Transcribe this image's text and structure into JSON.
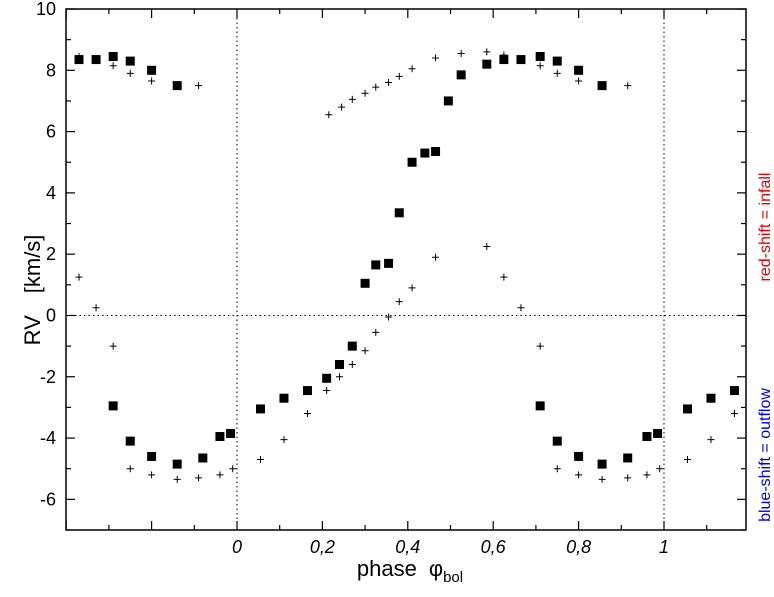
{
  "chart_data": {
    "type": "scatter",
    "xlabel": "phase",
    "xlabel_symbol": "φ",
    "xlabel_subscript": "bol",
    "ylabel": "RV",
    "ylabel_unit": "[km/s]",
    "xlim": [
      -0.4,
      1.18
    ],
    "ylim": [
      -7,
      10
    ],
    "x_ticks": [
      {
        "value": 0,
        "label": "0"
      },
      {
        "value": 0.2,
        "label": "0,2"
      },
      {
        "value": 0.4,
        "label": "0,4"
      },
      {
        "value": 0.6,
        "label": "0,6"
      },
      {
        "value": 0.8,
        "label": "0,8"
      },
      {
        "value": 1,
        "label": "1"
      }
    ],
    "y_ticks": [
      {
        "value": 10,
        "label": "10"
      },
      {
        "value": 8,
        "label": "8"
      },
      {
        "value": 6,
        "label": "6"
      },
      {
        "value": 4,
        "label": "4"
      },
      {
        "value": 2,
        "label": "2"
      },
      {
        "value": 0,
        "label": "0"
      },
      {
        "value": -2,
        "label": "-2"
      },
      {
        "value": -4,
        "label": "-4"
      },
      {
        "value": -6,
        "label": "-6"
      }
    ],
    "reference_lines": {
      "x": [
        0,
        1
      ],
      "y": [
        0
      ],
      "style": "dotted"
    },
    "annotations": [
      {
        "text": "red-shift = infall",
        "color": "#e00000",
        "position": "right, upper half"
      },
      {
        "text": "blue-shift = outflow",
        "color": "#0000e0",
        "position": "right, lower half"
      }
    ],
    "series": [
      {
        "marker": "filled-square",
        "points": [
          [
            -0.37,
            8.35
          ],
          [
            -0.33,
            8.35
          ],
          [
            -0.29,
            8.45
          ],
          [
            -0.25,
            8.3
          ],
          [
            -0.2,
            8.0
          ],
          [
            -0.14,
            7.5
          ],
          [
            -0.29,
            -2.95
          ],
          [
            -0.25,
            -4.1
          ],
          [
            -0.2,
            -4.6
          ],
          [
            -0.14,
            -4.85
          ],
          [
            -0.08,
            -4.65
          ],
          [
            -0.04,
            -3.95
          ],
          [
            -0.015,
            -3.85
          ],
          [
            0.055,
            -3.05
          ],
          [
            0.11,
            -2.7
          ],
          [
            0.165,
            -2.45
          ],
          [
            0.21,
            -2.05
          ],
          [
            0.24,
            -1.6
          ],
          [
            0.27,
            -1.0
          ],
          [
            0.3,
            1.05
          ],
          [
            0.325,
            1.65
          ],
          [
            0.355,
            1.7
          ],
          [
            0.38,
            3.35
          ],
          [
            0.41,
            5.0
          ],
          [
            0.44,
            5.3
          ],
          [
            0.465,
            5.35
          ],
          [
            0.495,
            7.0
          ],
          [
            0.525,
            7.85
          ],
          [
            0.585,
            8.2
          ],
          [
            0.625,
            8.35
          ],
          [
            0.665,
            8.35
          ],
          [
            0.71,
            8.45
          ],
          [
            0.75,
            8.3
          ],
          [
            0.8,
            8.0
          ],
          [
            0.855,
            7.5
          ],
          [
            0.71,
            -2.95
          ],
          [
            0.75,
            -4.1
          ],
          [
            0.8,
            -4.6
          ],
          [
            0.855,
            -4.85
          ],
          [
            0.915,
            -4.65
          ],
          [
            0.96,
            -3.95
          ],
          [
            0.985,
            -3.85
          ],
          [
            1.055,
            -3.05
          ],
          [
            1.11,
            -2.7
          ],
          [
            1.165,
            -2.45
          ]
        ]
      },
      {
        "marker": "plus",
        "points": [
          [
            -0.37,
            8.45
          ],
          [
            -0.33,
            8.35
          ],
          [
            -0.29,
            8.15
          ],
          [
            -0.25,
            7.9
          ],
          [
            -0.2,
            7.65
          ],
          [
            -0.09,
            7.5
          ],
          [
            -0.37,
            1.25
          ],
          [
            -0.33,
            0.25
          ],
          [
            -0.29,
            -1.0
          ],
          [
            -0.25,
            -5.0
          ],
          [
            -0.2,
            -5.2
          ],
          [
            -0.14,
            -5.35
          ],
          [
            -0.09,
            -5.3
          ],
          [
            -0.04,
            -5.2
          ],
          [
            -0.01,
            -5.0
          ],
          [
            0.055,
            -4.7
          ],
          [
            0.11,
            -4.05
          ],
          [
            0.165,
            -3.2
          ],
          [
            0.21,
            -2.45
          ],
          [
            0.24,
            -2.0
          ],
          [
            0.27,
            -1.6
          ],
          [
            0.3,
            -1.15
          ],
          [
            0.325,
            -0.55
          ],
          [
            0.355,
            -0.05
          ],
          [
            0.38,
            0.45
          ],
          [
            0.41,
            0.9
          ],
          [
            0.465,
            1.9
          ],
          [
            0.585,
            2.25
          ],
          [
            0.625,
            1.25
          ],
          [
            0.665,
            0.25
          ],
          [
            0.71,
            -1.0
          ],
          [
            0.215,
            6.55
          ],
          [
            0.245,
            6.8
          ],
          [
            0.27,
            7.05
          ],
          [
            0.3,
            7.25
          ],
          [
            0.325,
            7.45
          ],
          [
            0.355,
            7.6
          ],
          [
            0.38,
            7.8
          ],
          [
            0.41,
            8.05
          ],
          [
            0.465,
            8.4
          ],
          [
            0.525,
            8.55
          ],
          [
            0.585,
            8.6
          ],
          [
            0.625,
            8.5
          ],
          [
            0.71,
            8.15
          ],
          [
            0.75,
            7.9
          ],
          [
            0.8,
            7.65
          ],
          [
            0.915,
            7.5
          ],
          [
            0.75,
            -5.0
          ],
          [
            0.8,
            -5.2
          ],
          [
            0.855,
            -5.35
          ],
          [
            0.915,
            -5.3
          ],
          [
            0.96,
            -5.2
          ],
          [
            0.99,
            -5.0
          ],
          [
            1.055,
            -4.7
          ],
          [
            1.11,
            -4.05
          ],
          [
            1.165,
            -3.2
          ]
        ]
      }
    ]
  }
}
